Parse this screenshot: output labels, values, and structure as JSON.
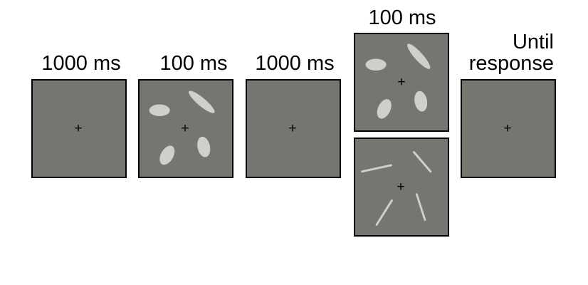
{
  "labels": {
    "frame1": "1000 ms",
    "frame2": "100 ms",
    "frame3": "1000 ms",
    "frame4": "100 ms",
    "frame5_line1": "Until",
    "frame5_line2": "response"
  },
  "fixation_glyph": "+",
  "colors": {
    "panel_bg": "#767671",
    "stimulus": "#cfcfcb",
    "border": "#000000",
    "fixation": "#000000"
  },
  "icons": {
    "fixation": "fixation-cross-icon",
    "ellipse": "ellipse-stimulus-icon",
    "line": "line-stimulus-icon"
  }
}
